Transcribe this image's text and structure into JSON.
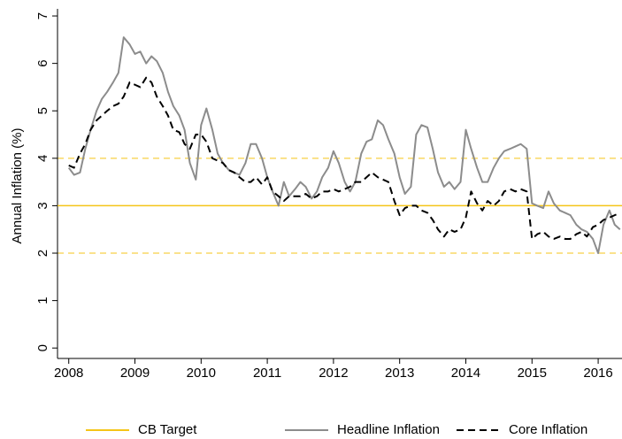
{
  "chart_data": {
    "type": "line",
    "y_label": "Annual Inflation (%)",
    "xlim": [
      2007.83,
      2016.36
    ],
    "ylim": [
      -0.22,
      7.15
    ],
    "xticks": [
      2008,
      2009,
      2010,
      2011,
      2012,
      2013,
      2014,
      2015,
      2016
    ],
    "yticks": [
      0,
      1,
      2,
      3,
      4,
      5,
      6,
      7
    ],
    "bands": {
      "values": [
        2,
        4
      ],
      "color": "#f5c518"
    },
    "x": [
      2008,
      2008.08,
      2008.17,
      2008.25,
      2008.33,
      2008.42,
      2008.5,
      2008.58,
      2008.67,
      2008.75,
      2008.83,
      2008.92,
      2009,
      2009.08,
      2009.17,
      2009.25,
      2009.33,
      2009.42,
      2009.5,
      2009.58,
      2009.67,
      2009.75,
      2009.83,
      2009.92,
      2010,
      2010.08,
      2010.17,
      2010.25,
      2010.33,
      2010.42,
      2010.5,
      2010.58,
      2010.67,
      2010.75,
      2010.83,
      2010.92,
      2011,
      2011.08,
      2011.17,
      2011.25,
      2011.33,
      2011.42,
      2011.5,
      2011.58,
      2011.67,
      2011.75,
      2011.83,
      2011.92,
      2012,
      2012.08,
      2012.17,
      2012.25,
      2012.33,
      2012.42,
      2012.5,
      2012.58,
      2012.67,
      2012.75,
      2012.83,
      2012.92,
      2013,
      2013.08,
      2013.17,
      2013.25,
      2013.33,
      2013.42,
      2013.5,
      2013.58,
      2013.67,
      2013.75,
      2013.83,
      2013.92,
      2014,
      2014.08,
      2014.17,
      2014.25,
      2014.33,
      2014.42,
      2014.5,
      2014.58,
      2014.67,
      2014.75,
      2014.83,
      2014.92,
      2015,
      2015.08,
      2015.17,
      2015.25,
      2015.33,
      2015.42,
      2015.5,
      2015.58,
      2015.67,
      2015.75,
      2015.83,
      2015.92,
      2016,
      2016.08,
      2016.17,
      2016.25,
      2016.33
    ],
    "series": [
      {
        "name": "CB Target",
        "color": "#f5c518",
        "hline": 3,
        "dash": "solid"
      },
      {
        "name": "Headline Inflation",
        "color": "#8c8c8c",
        "dash": "solid",
        "values": [
          3.8,
          3.65,
          3.7,
          4.2,
          4.6,
          5.0,
          5.25,
          5.4,
          5.6,
          5.8,
          6.55,
          6.4,
          6.2,
          6.25,
          6.0,
          6.15,
          6.05,
          5.8,
          5.4,
          5.1,
          4.9,
          4.6,
          3.9,
          3.55,
          4.7,
          5.05,
          4.6,
          4.1,
          3.9,
          3.75,
          3.7,
          3.65,
          3.9,
          4.3,
          4.3,
          4.0,
          3.6,
          3.3,
          3.0,
          3.5,
          3.2,
          3.35,
          3.5,
          3.4,
          3.15,
          3.3,
          3.6,
          3.8,
          4.15,
          3.9,
          3.5,
          3.3,
          3.5,
          4.1,
          4.35,
          4.4,
          4.8,
          4.7,
          4.4,
          4.1,
          3.6,
          3.25,
          3.4,
          4.5,
          4.7,
          4.65,
          4.2,
          3.7,
          3.4,
          3.5,
          3.35,
          3.5,
          4.6,
          4.2,
          3.8,
          3.5,
          3.5,
          3.8,
          4.0,
          4.15,
          4.2,
          4.25,
          4.3,
          4.2,
          3.05,
          3.0,
          2.95,
          3.3,
          3.05,
          2.9,
          2.85,
          2.8,
          2.6,
          2.5,
          2.45,
          2.3,
          2.0,
          2.6,
          2.9,
          2.6,
          2.5
        ]
      },
      {
        "name": "Core Inflation",
        "color": "#000000",
        "dash": "dashed",
        "values": [
          3.85,
          3.8,
          4.1,
          4.3,
          4.6,
          4.8,
          4.9,
          5.0,
          5.1,
          5.15,
          5.3,
          5.6,
          5.55,
          5.5,
          5.7,
          5.6,
          5.3,
          5.1,
          4.9,
          4.6,
          4.55,
          4.3,
          4.2,
          4.5,
          4.5,
          4.35,
          4.0,
          3.95,
          3.9,
          3.75,
          3.7,
          3.6,
          3.5,
          3.5,
          3.6,
          3.45,
          3.6,
          3.3,
          3.2,
          3.1,
          3.2,
          3.2,
          3.2,
          3.25,
          3.15,
          3.2,
          3.3,
          3.3,
          3.35,
          3.3,
          3.35,
          3.4,
          3.5,
          3.5,
          3.6,
          3.7,
          3.6,
          3.55,
          3.5,
          3.1,
          2.8,
          2.95,
          3.0,
          3.0,
          2.9,
          2.85,
          2.7,
          2.5,
          2.35,
          2.5,
          2.45,
          2.5,
          2.75,
          3.3,
          3.05,
          2.9,
          3.1,
          3.0,
          3.1,
          3.3,
          3.35,
          3.3,
          3.35,
          3.3,
          2.3,
          2.4,
          2.45,
          2.35,
          2.3,
          2.35,
          2.3,
          2.3,
          2.4,
          2.45,
          2.35,
          2.55,
          2.6,
          2.7,
          2.75,
          2.8,
          2.85
        ]
      }
    ]
  }
}
